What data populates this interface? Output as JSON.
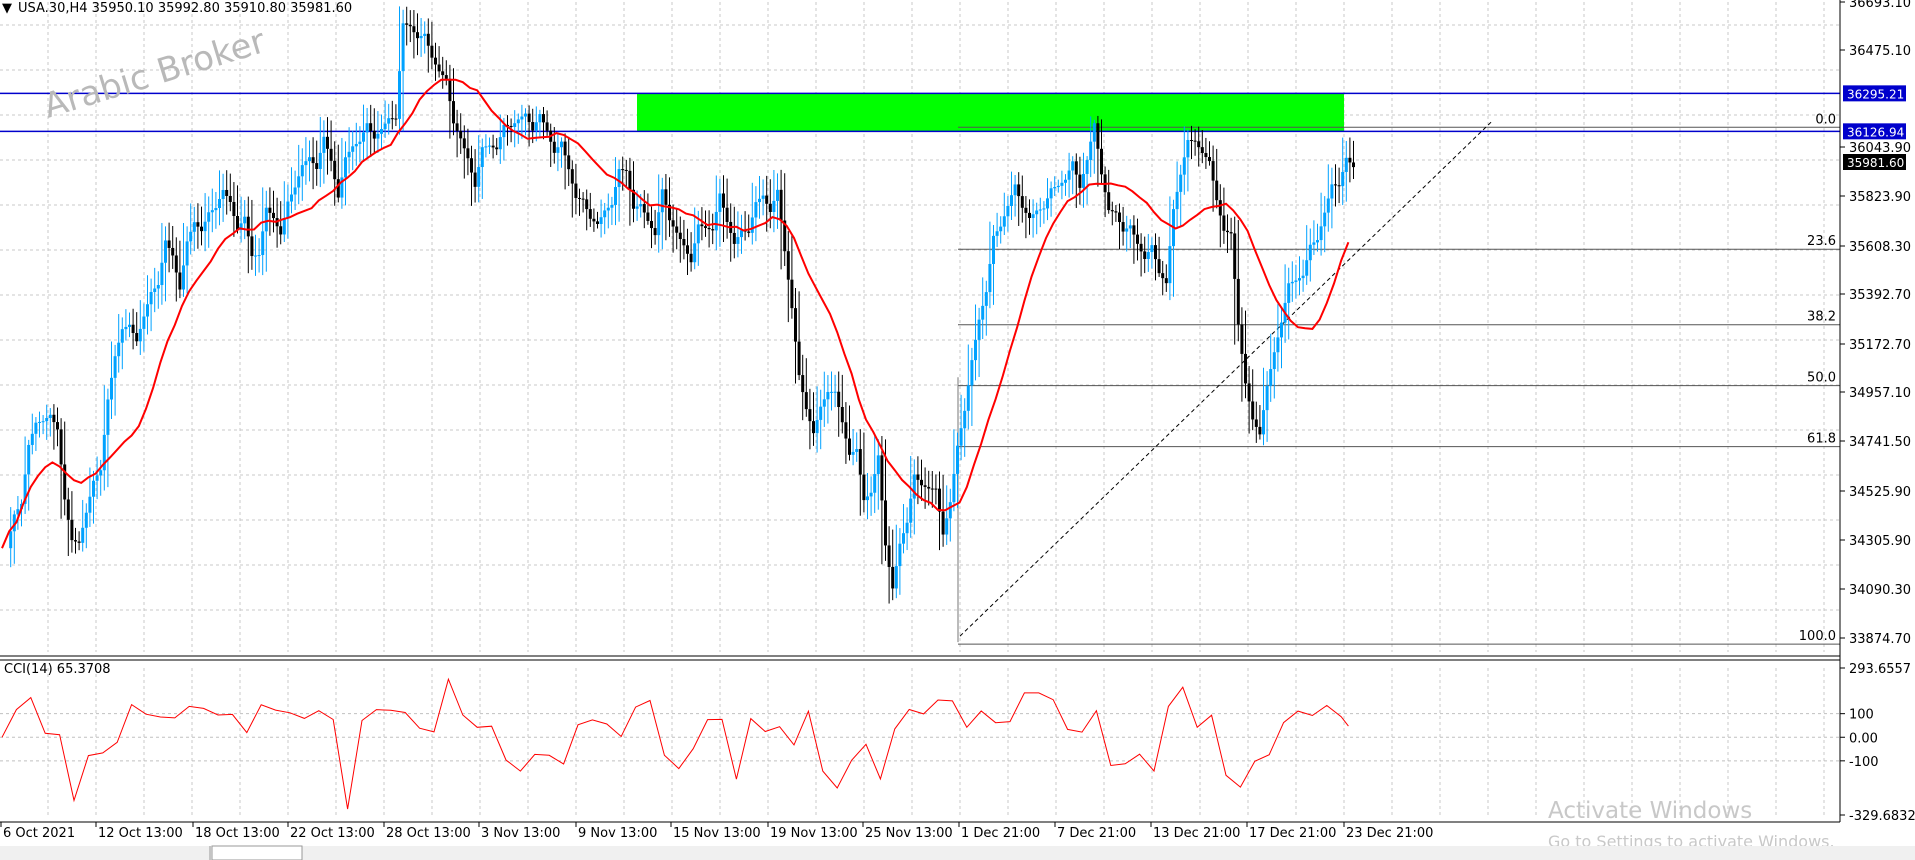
{
  "window": {
    "symbol_info": "USA.30,H4  35950.10 35992.80 35910.80 35981.60",
    "watermark": "Arabic Broker",
    "activation_title": "Activate Windows",
    "activation_sub": "Go to Settings to activate Windows."
  },
  "colors": {
    "up_candle": "#00a2ff",
    "down_candle": "#000000",
    "ma_line": "#ff0000",
    "cci_line": "#ff0000",
    "zone": "#00ff00",
    "level_line": "#0000cc",
    "label_bg": "#0000cc",
    "grid": "#c8c8c8"
  },
  "chart_data": [
    {
      "type": "candlestick",
      "title": "USA.30,H4",
      "y_ticks": [
        "36693.10",
        "36475.10",
        "36295.21",
        "36126.94",
        "36043.90",
        "35981.60",
        "35823.90",
        "35608.30",
        "35392.70",
        "35172.70",
        "34957.10",
        "34741.50",
        "34525.90",
        "34305.90",
        "34090.30",
        "33874.70"
      ],
      "x_ticks": [
        "6 Oct 2021",
        "12 Oct 13:00",
        "18 Oct 13:00",
        "22 Oct 13:00",
        "28 Oct 13:00",
        "3 Nov 13:00",
        "9 Nov 13:00",
        "15 Nov 13:00",
        "19 Nov 13:00",
        "25 Nov 13:00",
        "1 Dec 21:00",
        "7 Dec 21:00",
        "13 Dec 21:00",
        "17 Dec 21:00",
        "23 Dec 21:00"
      ],
      "price_labels": [
        {
          "name": "resistance-upper",
          "value": "36295.21"
        },
        {
          "name": "resistance-lower",
          "value": "36126.94"
        },
        {
          "name": "current-price",
          "value": "35981.60"
        }
      ],
      "ylim": [
        33820,
        36700
      ],
      "horizontal_levels": [
        36295.21,
        36126.94
      ],
      "supply_zone": {
        "low": 36126.94,
        "high": 36295.21
      },
      "moving_average": "red line",
      "price_path": [
        [
          0,
          34250
        ],
        [
          3,
          34700
        ],
        [
          5,
          34900
        ],
        [
          7,
          34800
        ],
        [
          8,
          34500
        ],
        [
          9,
          34300
        ],
        [
          11,
          34400
        ],
        [
          13,
          34700
        ],
        [
          15,
          35100
        ],
        [
          16,
          35300
        ],
        [
          18,
          35200
        ],
        [
          20,
          35400
        ],
        [
          22,
          35600
        ],
        [
          24,
          35500
        ],
        [
          26,
          35700
        ],
        [
          28,
          35750
        ],
        [
          30,
          35850
        ],
        [
          33,
          35700
        ],
        [
          34,
          35550
        ],
        [
          36,
          35750
        ],
        [
          38,
          35700
        ],
        [
          40,
          35900
        ],
        [
          42,
          36000
        ],
        [
          44,
          36050
        ],
        [
          46,
          35900
        ],
        [
          48,
          36050
        ],
        [
          50,
          36150
        ],
        [
          52,
          36100
        ],
        [
          54,
          36250
        ],
        [
          55,
          36550
        ],
        [
          57,
          36600
        ],
        [
          59,
          36450
        ],
        [
          61,
          36350
        ],
        [
          62,
          36200
        ],
        [
          63,
          36050
        ],
        [
          65,
          35950
        ],
        [
          66,
          36000
        ],
        [
          68,
          36100
        ],
        [
          70,
          36150
        ],
        [
          72,
          36200
        ],
        [
          74,
          36150
        ],
        [
          76,
          36100
        ],
        [
          78,
          35950
        ],
        [
          80,
          35800
        ],
        [
          82,
          35700
        ],
        [
          84,
          35850
        ],
        [
          86,
          35950
        ],
        [
          88,
          35750
        ],
        [
          90,
          35700
        ],
        [
          91,
          35850
        ],
        [
          93,
          35650
        ],
        [
          95,
          35600
        ],
        [
          97,
          35700
        ],
        [
          99,
          35800
        ],
        [
          101,
          35650
        ],
        [
          103,
          35700
        ],
        [
          105,
          35850
        ],
        [
          107,
          35800
        ],
        [
          109,
          35400
        ],
        [
          110,
          35000
        ],
        [
          112,
          34800
        ],
        [
          114,
          35000
        ],
        [
          116,
          34850
        ],
        [
          118,
          34650
        ],
        [
          119,
          34500
        ],
        [
          121,
          34650
        ],
        [
          122,
          34300
        ],
        [
          123,
          34100
        ],
        [
          124,
          34300
        ],
        [
          126,
          34550
        ],
        [
          128,
          34600
        ],
        [
          130,
          34350
        ],
        [
          132,
          34700
        ],
        [
          134,
          35100
        ],
        [
          135,
          35300
        ],
        [
          137,
          35600
        ],
        [
          139,
          35850
        ],
        [
          141,
          35800
        ],
        [
          143,
          35750
        ],
        [
          145,
          35850
        ],
        [
          147,
          35950
        ],
        [
          149,
          35900
        ],
        [
          150,
          36050
        ],
        [
          151,
          36100
        ],
        [
          153,
          35800
        ],
        [
          155,
          35700
        ],
        [
          157,
          35650
        ],
        [
          159,
          35550
        ],
        [
          161,
          35500
        ],
        [
          163,
          35950
        ],
        [
          164,
          36100
        ],
        [
          166,
          36050
        ],
        [
          168,
          35850
        ],
        [
          170,
          35600
        ],
        [
          171,
          35300
        ],
        [
          172,
          35050
        ],
        [
          173,
          34800
        ],
        [
          174,
          34800
        ],
        [
          175,
          35000
        ],
        [
          177,
          35300
        ],
        [
          179,
          35500
        ],
        [
          181,
          35550
        ],
        [
          183,
          35800
        ],
        [
          185,
          35900
        ],
        [
          186,
          36000
        ],
        [
          187,
          35980
        ]
      ],
      "fibonacci": {
        "levels": [
          "0.0",
          "23.6",
          "38.2",
          "50.0",
          "61.8",
          "100.0"
        ],
        "high": 36145,
        "low": 33855
      }
    },
    {
      "type": "line",
      "title": "CCI(14) 65.3708",
      "y_ticks": [
        "293.6557",
        "100",
        "0.00",
        "-100",
        "-329.6832"
      ],
      "ylim": [
        -329.6832,
        293.6557
      ],
      "reference_lines": [
        100,
        0,
        -100
      ],
      "cci_path": [
        [
          0,
          0
        ],
        [
          2,
          130
        ],
        [
          4,
          150
        ],
        [
          6,
          30
        ],
        [
          8,
          10
        ],
        [
          10,
          -280
        ],
        [
          12,
          -60
        ],
        [
          14,
          -80
        ],
        [
          16,
          -20
        ],
        [
          18,
          150
        ],
        [
          20,
          80
        ],
        [
          22,
          100
        ],
        [
          24,
          80
        ],
        [
          26,
          120
        ],
        [
          28,
          140
        ],
        [
          30,
          80
        ],
        [
          32,
          100
        ],
        [
          34,
          30
        ],
        [
          36,
          120
        ],
        [
          38,
          130
        ],
        [
          40,
          100
        ],
        [
          42,
          70
        ],
        [
          44,
          130
        ],
        [
          46,
          60
        ],
        [
          48,
          -300
        ],
        [
          50,
          80
        ],
        [
          52,
          100
        ],
        [
          54,
          130
        ],
        [
          56,
          100
        ],
        [
          58,
          30
        ],
        [
          60,
          40
        ],
        [
          62,
          230
        ],
        [
          64,
          100
        ],
        [
          66,
          50
        ],
        [
          68,
          30
        ],
        [
          70,
          -80
        ],
        [
          72,
          -150
        ],
        [
          74,
          -80
        ],
        [
          76,
          -60
        ],
        [
          78,
          -130
        ],
        [
          80,
          60
        ],
        [
          82,
          80
        ],
        [
          84,
          40
        ],
        [
          86,
          20
        ],
        [
          88,
          120
        ],
        [
          90,
          150
        ],
        [
          92,
          -60
        ],
        [
          94,
          -150
        ],
        [
          96,
          -40
        ],
        [
          98,
          80
        ],
        [
          100,
          60
        ],
        [
          102,
          -160
        ],
        [
          104,
          70
        ],
        [
          106,
          20
        ],
        [
          108,
          60
        ],
        [
          110,
          -50
        ],
        [
          112,
          120
        ],
        [
          114,
          -140
        ],
        [
          116,
          -230
        ],
        [
          118,
          -80
        ],
        [
          120,
          -40
        ],
        [
          122,
          -180
        ],
        [
          124,
          50
        ],
        [
          126,
          100
        ],
        [
          128,
          110
        ],
        [
          130,
          160
        ],
        [
          132,
          140
        ],
        [
          134,
          60
        ],
        [
          136,
          100
        ],
        [
          138,
          60
        ],
        [
          140,
          80
        ],
        [
          142,
          170
        ],
        [
          144,
          200
        ],
        [
          146,
          160
        ],
        [
          148,
          20
        ],
        [
          150,
          40
        ],
        [
          152,
          100
        ],
        [
          154,
          -120
        ],
        [
          156,
          -100
        ],
        [
          158,
          -90
        ],
        [
          160,
          -130
        ],
        [
          162,
          130
        ],
        [
          164,
          200
        ],
        [
          166,
          60
        ],
        [
          168,
          80
        ],
        [
          170,
          -160
        ],
        [
          172,
          -200
        ],
        [
          174,
          -120
        ],
        [
          176,
          -60
        ],
        [
          178,
          60
        ],
        [
          180,
          100
        ],
        [
          182,
          110
        ],
        [
          184,
          120
        ],
        [
          186,
          90
        ],
        [
          187,
          65
        ]
      ]
    }
  ]
}
